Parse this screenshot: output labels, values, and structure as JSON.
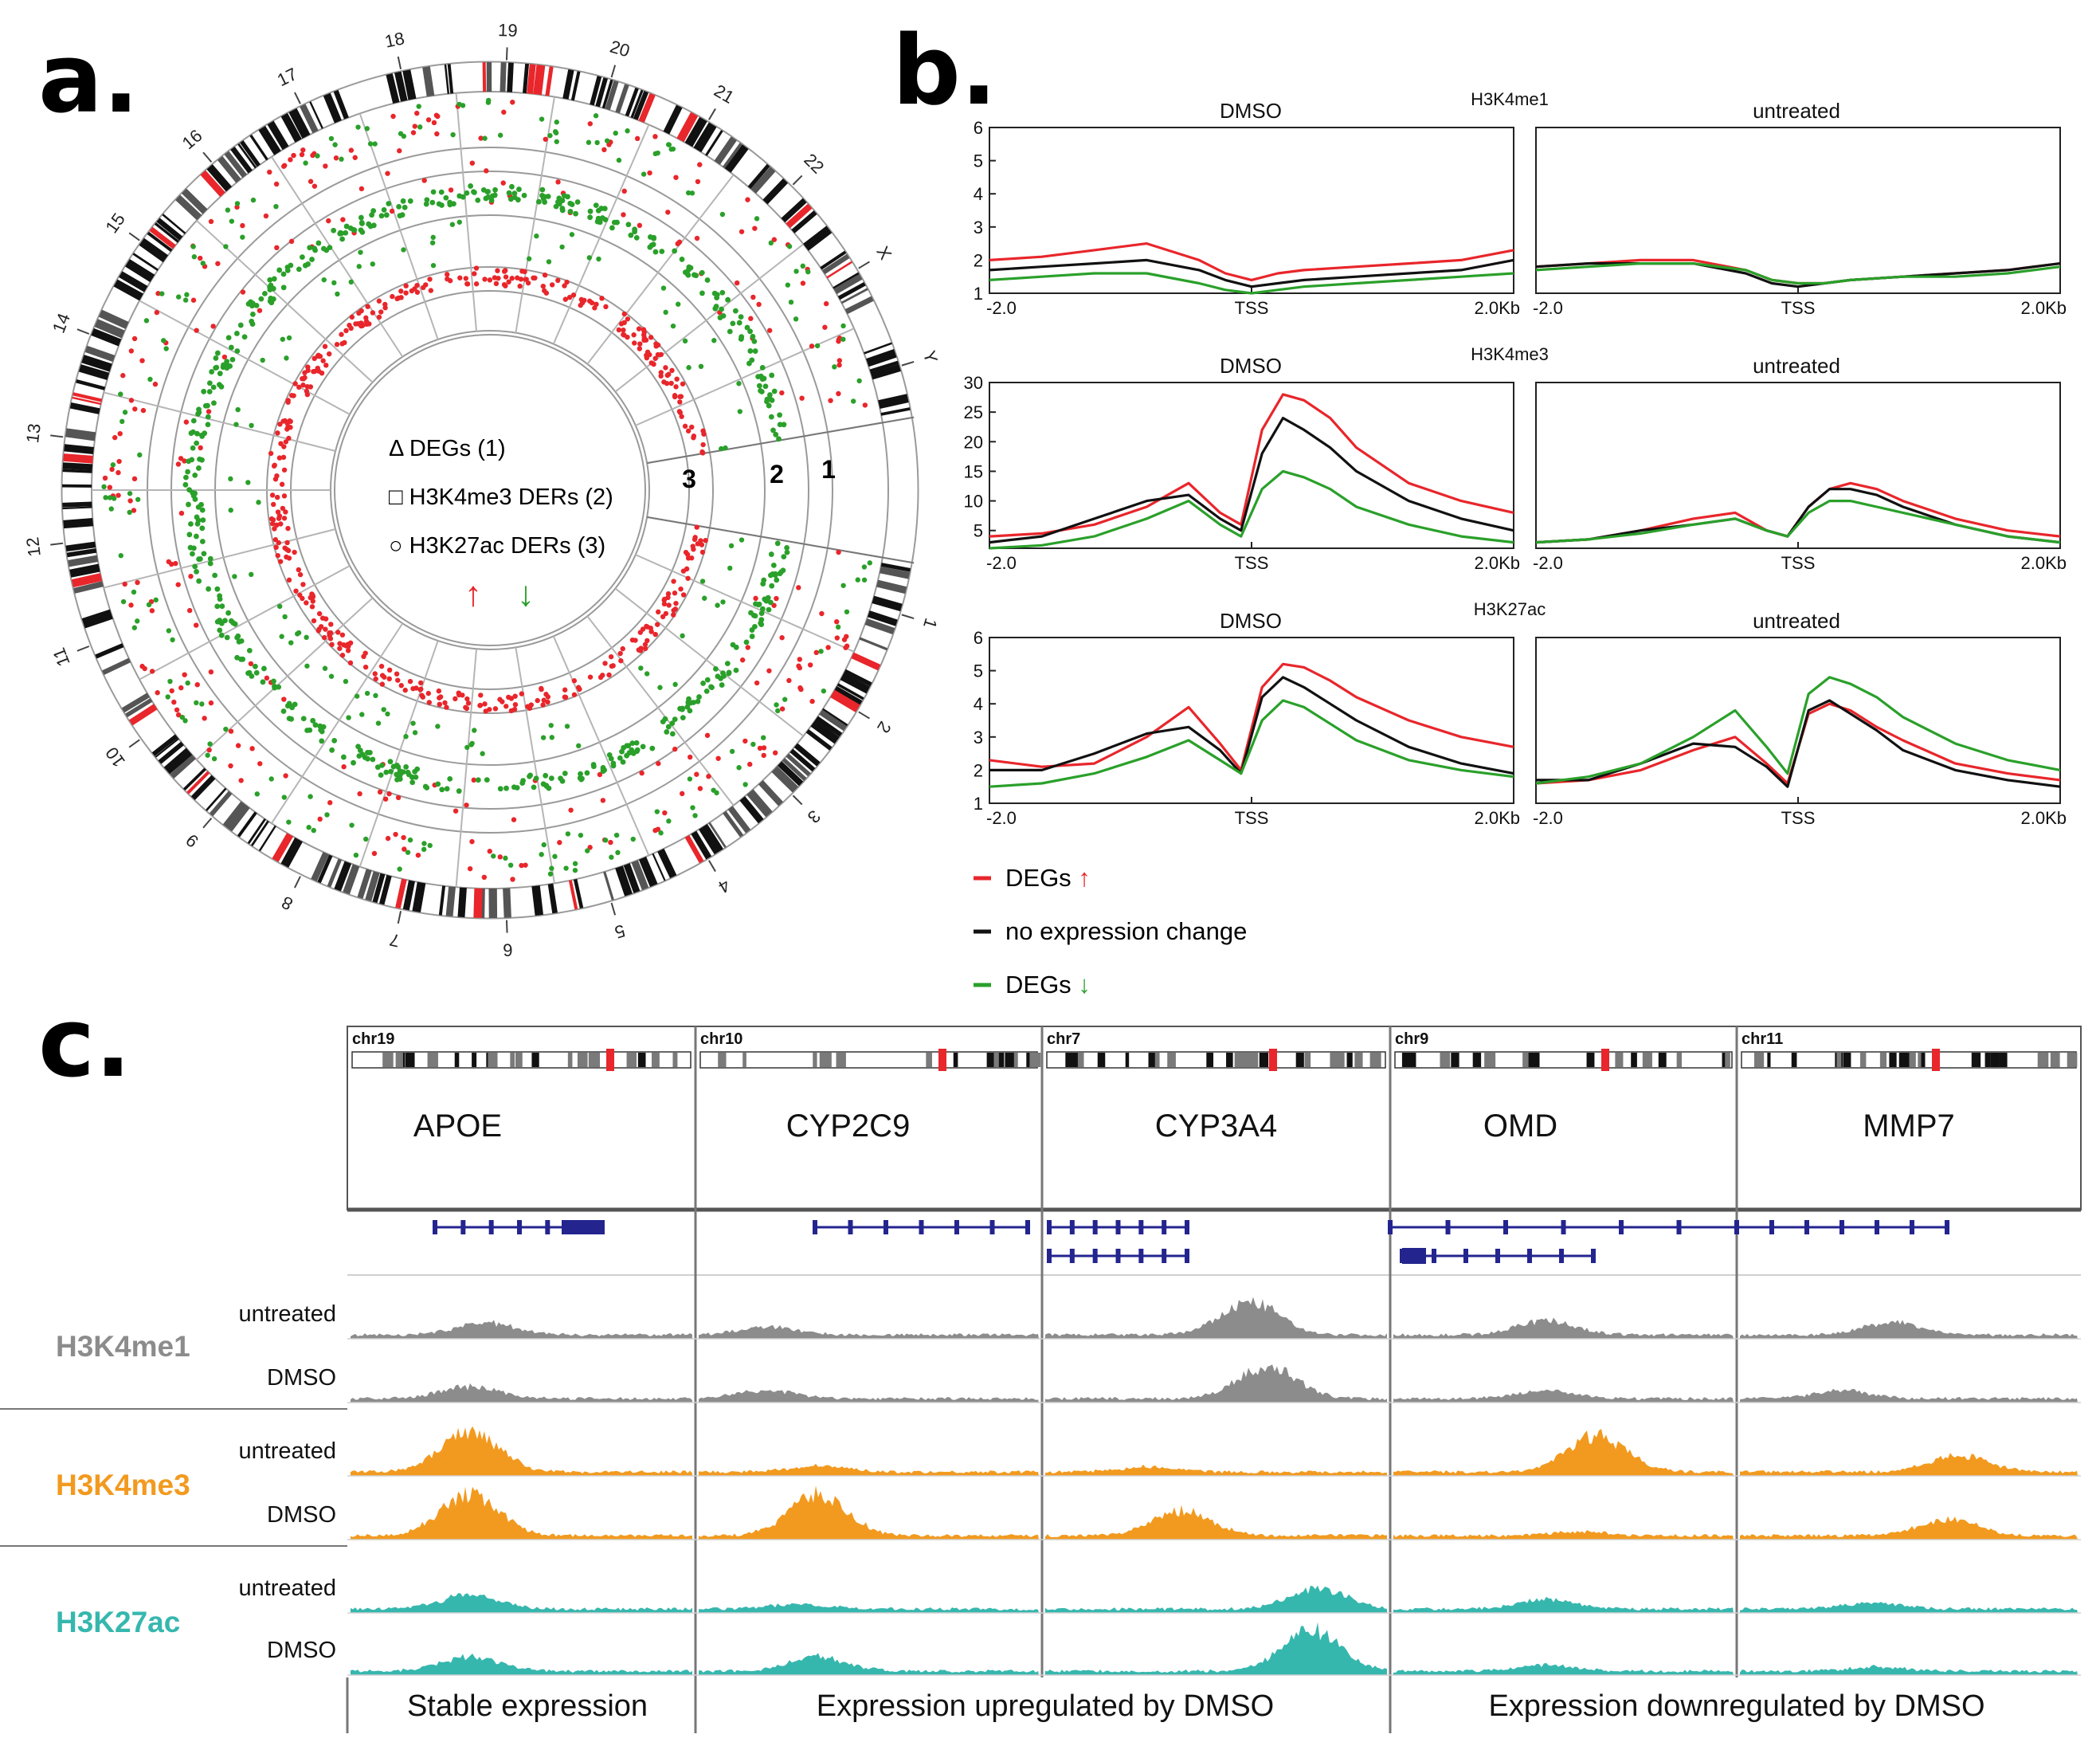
{
  "panel_labels": {
    "a": "a.",
    "b": "b.",
    "c": "c."
  },
  "colors": {
    "red": "#e8262b",
    "green": "#2aa02a",
    "black": "#111111",
    "gray": "#8c8c8c",
    "orange": "#f29a1f",
    "teal": "#36b7ae",
    "navy": "#24248f"
  },
  "panel_a": {
    "chromosomes": [
      "1",
      "2",
      "3",
      "4",
      "5",
      "6",
      "7",
      "8",
      "9",
      "10",
      "11",
      "12",
      "13",
      "14",
      "15",
      "16",
      "17",
      "18",
      "19",
      "20",
      "21",
      "22",
      "X",
      "Y"
    ],
    "legend": [
      {
        "symbol": "Δ",
        "text": "DEGs (1)"
      },
      {
        "symbol": "□",
        "text": "H3K4me3 DERs (2)"
      },
      {
        "symbol": "○",
        "text": "H3K27ac DERs (3)"
      }
    ],
    "ring_numbers": [
      "1",
      "2",
      "3"
    ],
    "arrow_up": "↑",
    "arrow_down": "↓"
  },
  "legend_b": [
    {
      "text": "DEGs",
      "arrow": "↑",
      "color": "#e8262b"
    },
    {
      "text": "no expression change",
      "arrow": "",
      "color": "#111111"
    },
    {
      "text": "DEGs",
      "arrow": "↓",
      "color": "#2aa02a"
    }
  ],
  "chart_data": [
    {
      "type": "line",
      "mark": "H3K4me1",
      "title": "DMSO",
      "ylim": [
        1,
        6
      ],
      "yticks": [
        1,
        2,
        3,
        4,
        5,
        6
      ],
      "xticklabels": [
        "-2.0",
        "TSS",
        "2.0Kb"
      ],
      "x": [
        0,
        10,
        20,
        30,
        40,
        45,
        50,
        55,
        60,
        70,
        80,
        90,
        100
      ],
      "series": [
        {
          "name": "DEGs up",
          "color": "#e8262b",
          "values": [
            2.0,
            2.1,
            2.3,
            2.5,
            2.0,
            1.6,
            1.4,
            1.6,
            1.7,
            1.8,
            1.9,
            2.0,
            2.3
          ]
        },
        {
          "name": "no expression change",
          "color": "#111111",
          "values": [
            1.7,
            1.8,
            1.9,
            2.0,
            1.7,
            1.4,
            1.2,
            1.3,
            1.4,
            1.5,
            1.6,
            1.7,
            2.0
          ]
        },
        {
          "name": "DEGs down",
          "color": "#2aa02a",
          "values": [
            1.4,
            1.5,
            1.6,
            1.6,
            1.3,
            1.1,
            1.0,
            1.1,
            1.2,
            1.3,
            1.4,
            1.5,
            1.6
          ]
        }
      ]
    },
    {
      "type": "line",
      "mark": "",
      "title": "untreated",
      "ylim": [
        1,
        6
      ],
      "yticks": [],
      "xticklabels": [
        "-2.0",
        "TSS",
        "2.0Kb"
      ],
      "x": [
        0,
        10,
        20,
        30,
        40,
        45,
        50,
        55,
        60,
        70,
        80,
        90,
        100
      ],
      "series": [
        {
          "name": "DEGs up",
          "color": "#e8262b",
          "values": [
            1.8,
            1.9,
            2.0,
            2.0,
            1.7,
            1.4,
            1.3,
            1.3,
            1.4,
            1.5,
            1.6,
            1.7,
            1.9
          ]
        },
        {
          "name": "no expression change",
          "color": "#111111",
          "values": [
            1.8,
            1.9,
            1.9,
            1.9,
            1.6,
            1.3,
            1.2,
            1.3,
            1.4,
            1.5,
            1.6,
            1.7,
            1.9
          ]
        },
        {
          "name": "DEGs down",
          "color": "#2aa02a",
          "values": [
            1.7,
            1.8,
            1.9,
            1.9,
            1.7,
            1.4,
            1.3,
            1.3,
            1.4,
            1.5,
            1.5,
            1.6,
            1.8
          ]
        }
      ]
    },
    {
      "type": "line",
      "mark": "H3K4me3",
      "title": "DMSO",
      "ylim": [
        2,
        30
      ],
      "yticks": [
        5,
        10,
        15,
        20,
        25,
        30
      ],
      "xticklabels": [
        "-2.0",
        "TSS",
        "2.0Kb"
      ],
      "x": [
        0,
        10,
        20,
        30,
        38,
        44,
        48,
        52,
        56,
        60,
        65,
        70,
        80,
        90,
        100
      ],
      "series": [
        {
          "name": "DEGs up",
          "color": "#e8262b",
          "values": [
            4,
            4.5,
            6,
            9,
            13,
            8,
            6,
            22,
            28,
            27,
            24,
            19,
            13,
            10,
            8
          ]
        },
        {
          "name": "no expression change",
          "color": "#111111",
          "values": [
            3,
            4,
            7,
            10,
            11,
            7,
            5,
            18,
            24,
            22,
            19,
            15,
            10,
            7,
            5
          ]
        },
        {
          "name": "DEGs down",
          "color": "#2aa02a",
          "values": [
            2,
            2.5,
            4,
            7,
            10,
            6,
            4,
            12,
            15,
            14,
            12,
            9,
            6,
            4,
            3
          ]
        }
      ]
    },
    {
      "type": "line",
      "mark": "",
      "title": "untreated",
      "ylim": [
        2,
        30
      ],
      "yticks": [],
      "xticklabels": [
        "-2.0",
        "TSS",
        "2.0Kb"
      ],
      "x": [
        0,
        10,
        20,
        30,
        38,
        44,
        48,
        52,
        56,
        60,
        65,
        70,
        80,
        90,
        100
      ],
      "series": [
        {
          "name": "DEGs up",
          "color": "#e8262b",
          "values": [
            3,
            3.5,
            5,
            7,
            8,
            5,
            4,
            9,
            12,
            13,
            12,
            10,
            7,
            5,
            4
          ]
        },
        {
          "name": "no expression change",
          "color": "#111111",
          "values": [
            3,
            3.5,
            5,
            6,
            7,
            5,
            4,
            9,
            12,
            12,
            11,
            9,
            6,
            4,
            3
          ]
        },
        {
          "name": "DEGs down",
          "color": "#2aa02a",
          "values": [
            3,
            3.5,
            4.5,
            6,
            7,
            5,
            4,
            8,
            10,
            10,
            9,
            8,
            6,
            4,
            3
          ]
        }
      ]
    },
    {
      "type": "line",
      "mark": "H3K27ac",
      "title": "DMSO",
      "ylim": [
        1,
        6
      ],
      "yticks": [
        1,
        2,
        3,
        4,
        5,
        6
      ],
      "xticklabels": [
        "-2.0",
        "TSS",
        "2.0Kb"
      ],
      "x": [
        0,
        10,
        20,
        30,
        38,
        44,
        48,
        52,
        56,
        60,
        65,
        70,
        80,
        90,
        100
      ],
      "series": [
        {
          "name": "DEGs up",
          "color": "#e8262b",
          "values": [
            2.3,
            2.1,
            2.2,
            3.0,
            3.9,
            2.8,
            2.0,
            4.5,
            5.2,
            5.1,
            4.7,
            4.2,
            3.5,
            3.0,
            2.7
          ]
        },
        {
          "name": "no expression change",
          "color": "#111111",
          "values": [
            2.0,
            2.0,
            2.5,
            3.1,
            3.3,
            2.6,
            1.9,
            4.2,
            4.8,
            4.5,
            4.0,
            3.5,
            2.7,
            2.2,
            1.9
          ]
        },
        {
          "name": "DEGs down",
          "color": "#2aa02a",
          "values": [
            1.5,
            1.6,
            1.9,
            2.4,
            2.9,
            2.3,
            1.9,
            3.5,
            4.1,
            3.9,
            3.4,
            2.9,
            2.3,
            2.0,
            1.8
          ]
        }
      ]
    },
    {
      "type": "line",
      "mark": "",
      "title": "untreated",
      "ylim": [
        1,
        6
      ],
      "yticks": [],
      "xticklabels": [
        "-2.0",
        "TSS",
        "2.0Kb"
      ],
      "x": [
        0,
        10,
        20,
        30,
        38,
        44,
        48,
        52,
        56,
        60,
        65,
        70,
        80,
        90,
        100
      ],
      "series": [
        {
          "name": "DEGs up",
          "color": "#e8262b",
          "values": [
            1.6,
            1.7,
            2.0,
            2.6,
            3.0,
            2.2,
            1.6,
            3.7,
            4.0,
            3.8,
            3.3,
            2.9,
            2.2,
            1.9,
            1.7
          ]
        },
        {
          "name": "no expression change",
          "color": "#111111",
          "values": [
            1.7,
            1.7,
            2.2,
            2.8,
            2.7,
            2.1,
            1.5,
            3.8,
            4.1,
            3.7,
            3.2,
            2.6,
            2.0,
            1.7,
            1.5
          ]
        },
        {
          "name": "DEGs down",
          "color": "#2aa02a",
          "values": [
            1.6,
            1.8,
            2.2,
            3.0,
            3.8,
            2.7,
            1.9,
            4.3,
            4.8,
            4.6,
            4.2,
            3.6,
            2.8,
            2.3,
            2.0
          ]
        }
      ]
    }
  ],
  "panel_c": {
    "chrom_labels": [
      "chr19",
      "chr10",
      "chr7",
      "chr9",
      "chr11"
    ],
    "genes": [
      "APOE",
      "CYP2C9",
      "CYP3A4",
      "OMD",
      "MMP7"
    ],
    "marks": [
      {
        "name": "H3K4me1",
        "color": "#8c8c8c"
      },
      {
        "name": "H3K4me3",
        "color": "#f29a1f"
      },
      {
        "name": "H3K27ac",
        "color": "#36b7ae"
      }
    ],
    "conditions": [
      "untreated",
      "DMSO"
    ],
    "footer": [
      "Stable expression",
      "Expression upregulated by DMSO",
      "Expression downregulated by DMSO"
    ]
  }
}
